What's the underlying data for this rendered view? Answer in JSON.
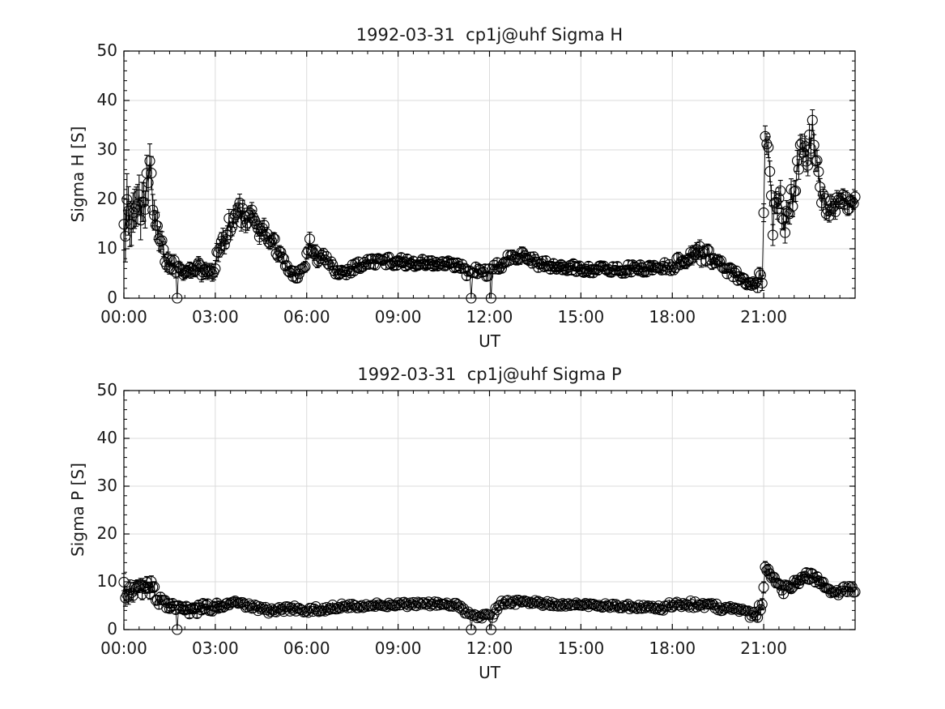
{
  "style": {
    "background_color": "#ffffff",
    "axis_color": "#000000",
    "grid_color": "#dbdbdb",
    "data_color": "#000000",
    "text_color": "#1a1a1a"
  },
  "chart_data": [
    {
      "type": "line",
      "subtype": "errorbar-open-circle-markers",
      "title": "1992-03-31  cp1j@uhf Sigma H",
      "xlabel": "UT",
      "ylabel": "Sigma H [S]",
      "xlim": [
        0,
        24
      ],
      "ylim": [
        0,
        50
      ],
      "xticks": [
        0,
        3,
        6,
        9,
        12,
        15,
        18,
        21
      ],
      "xtick_labels": [
        "00:00",
        "03:00",
        "06:00",
        "09:00",
        "12:00",
        "15:00",
        "18:00",
        "21:00"
      ],
      "yticks": [
        0,
        10,
        20,
        30,
        40,
        50
      ],
      "ytick_labels": [
        "0",
        "10",
        "20",
        "30",
        "40",
        "50"
      ],
      "x_minor_step_hours": 0.5,
      "y_minor_step": 2,
      "grid": true,
      "legend": "none",
      "marker": "open-circle",
      "sample_step_hours": 0.05,
      "seed": 1337,
      "keypoints_time_value_spread": [
        [
          0.0,
          20,
          8
        ],
        [
          0.1,
          15,
          8
        ],
        [
          0.3,
          17,
          6
        ],
        [
          0.6,
          20,
          6
        ],
        [
          0.9,
          24,
          5
        ],
        [
          1.1,
          15,
          4
        ],
        [
          1.3,
          9,
          2
        ],
        [
          1.5,
          7,
          1.5
        ],
        [
          1.8,
          6.5,
          1.5
        ],
        [
          2.1,
          6,
          1.5
        ],
        [
          2.4,
          5.5,
          1.5
        ],
        [
          2.7,
          7,
          2
        ],
        [
          2.9,
          6,
          2
        ],
        [
          3.1,
          9,
          2.5
        ],
        [
          3.3,
          13,
          2.5
        ],
        [
          3.6,
          16,
          2.5
        ],
        [
          3.8,
          17.5,
          2.5
        ],
        [
          4.0,
          15.5,
          2
        ],
        [
          4.2,
          16,
          2
        ],
        [
          4.5,
          14,
          2
        ],
        [
          4.8,
          12,
          1.5
        ],
        [
          5.1,
          9.5,
          1.5
        ],
        [
          5.4,
          5.5,
          1
        ],
        [
          5.7,
          4.8,
          1
        ],
        [
          5.9,
          6,
          1.2
        ],
        [
          6.1,
          11,
          1.8
        ],
        [
          6.3,
          8.5,
          1.5
        ],
        [
          6.6,
          8,
          1.2
        ],
        [
          6.9,
          5.8,
          1
        ],
        [
          7.2,
          5.2,
          1
        ],
        [
          7.6,
          6.5,
          1
        ],
        [
          8.0,
          7.2,
          1
        ],
        [
          8.5,
          7.6,
          1
        ],
        [
          9.0,
          7.4,
          0.9
        ],
        [
          9.5,
          7.2,
          0.9
        ],
        [
          10.0,
          7.0,
          0.9
        ],
        [
          10.5,
          6.8,
          0.9
        ],
        [
          11.0,
          6.5,
          0.9
        ],
        [
          11.3,
          5.2,
          1
        ],
        [
          11.6,
          5.5,
          1
        ],
        [
          12.0,
          5.2,
          1
        ],
        [
          12.3,
          6.5,
          1
        ],
        [
          12.7,
          8,
          1.2
        ],
        [
          13.0,
          9.3,
          1.4
        ],
        [
          13.3,
          8.2,
          1.2
        ],
        [
          13.7,
          6.8,
          1
        ],
        [
          14.2,
          6.3,
          0.9
        ],
        [
          15.0,
          6.0,
          0.9
        ],
        [
          16.0,
          5.8,
          0.9
        ],
        [
          17.0,
          6.0,
          0.9
        ],
        [
          17.6,
          6.3,
          1
        ],
        [
          18.1,
          6.8,
          1.2
        ],
        [
          18.5,
          8.2,
          1.5
        ],
        [
          18.8,
          9.5,
          1.8
        ],
        [
          19.1,
          8.8,
          1.5
        ],
        [
          19.5,
          7.2,
          1.2
        ],
        [
          19.9,
          5.5,
          1
        ],
        [
          20.2,
          4.2,
          1
        ],
        [
          20.5,
          2.8,
          0.8
        ],
        [
          20.75,
          2.5,
          0.8
        ],
        [
          20.95,
          5,
          2
        ],
        [
          21.05,
          30,
          3
        ],
        [
          21.15,
          28,
          3
        ],
        [
          21.3,
          15,
          3
        ],
        [
          21.5,
          22,
          3
        ],
        [
          21.7,
          16,
          3
        ],
        [
          21.9,
          20,
          3
        ],
        [
          22.1,
          26,
          3
        ],
        [
          22.25,
          33,
          2.5
        ],
        [
          22.4,
          27,
          3
        ],
        [
          22.6,
          35,
          3
        ],
        [
          22.75,
          25,
          3
        ],
        [
          22.9,
          20,
          2
        ],
        [
          23.1,
          17.5,
          1.5
        ],
        [
          23.35,
          19,
          2
        ],
        [
          23.55,
          21.5,
          1.5
        ],
        [
          23.75,
          18.5,
          1.5
        ],
        [
          24.0,
          19,
          1.5
        ]
      ],
      "outliers_zero_times": [
        1.75,
        11.4,
        12.05
      ]
    },
    {
      "type": "line",
      "subtype": "errorbar-open-circle-markers",
      "title": "1992-03-31  cp1j@uhf Sigma P",
      "xlabel": "UT",
      "ylabel": "Sigma P [S]",
      "xlim": [
        0,
        24
      ],
      "ylim": [
        0,
        50
      ],
      "xticks": [
        0,
        3,
        6,
        9,
        12,
        15,
        18,
        21
      ],
      "xtick_labels": [
        "00:00",
        "03:00",
        "06:00",
        "09:00",
        "12:00",
        "15:00",
        "18:00",
        "21:00"
      ],
      "yticks": [
        0,
        10,
        20,
        30,
        40,
        50
      ],
      "ytick_labels": [
        "0",
        "10",
        "20",
        "30",
        "40",
        "50"
      ],
      "x_minor_step_hours": 0.5,
      "y_minor_step": 2,
      "grid": true,
      "legend": "none",
      "marker": "open-circle",
      "sample_step_hours": 0.05,
      "seed": 777,
      "keypoints_time_value_spread": [
        [
          0.0,
          9,
          2.5
        ],
        [
          0.3,
          8,
          1.8
        ],
        [
          0.6,
          8.5,
          1.5
        ],
        [
          0.9,
          8.8,
          1.5
        ],
        [
          1.1,
          6.5,
          1.2
        ],
        [
          1.4,
          5.5,
          1
        ],
        [
          1.7,
          5,
          1
        ],
        [
          2.0,
          4.2,
          0.9
        ],
        [
          2.3,
          3.6,
          0.9
        ],
        [
          2.6,
          4.8,
          1
        ],
        [
          2.9,
          4.5,
          1.2
        ],
        [
          3.2,
          5.2,
          0.8
        ],
        [
          3.6,
          5.4,
          0.7
        ],
        [
          4.0,
          5.2,
          0.7
        ],
        [
          4.4,
          4.6,
          0.7
        ],
        [
          4.8,
          3.9,
          0.7
        ],
        [
          5.2,
          4.3,
          0.7
        ],
        [
          5.6,
          4.4,
          0.6
        ],
        [
          6.0,
          4.1,
          0.6
        ],
        [
          6.5,
          4.3,
          0.6
        ],
        [
          7.0,
          4.8,
          0.6
        ],
        [
          7.5,
          5.0,
          0.5
        ],
        [
          8.0,
          5.1,
          0.5
        ],
        [
          9.0,
          5.2,
          0.5
        ],
        [
          10.0,
          5.4,
          0.5
        ],
        [
          11.0,
          5.1,
          0.5
        ],
        [
          11.3,
          3.2,
          0.6
        ],
        [
          11.7,
          2.9,
          0.6
        ],
        [
          12.1,
          3.1,
          0.6
        ],
        [
          12.35,
          5.6,
          0.6
        ],
        [
          13.0,
          5.8,
          0.5
        ],
        [
          14.0,
          5.4,
          0.5
        ],
        [
          15.0,
          5.2,
          0.5
        ],
        [
          16.0,
          5.0,
          0.5
        ],
        [
          17.0,
          4.7,
          0.5
        ],
        [
          17.6,
          4.4,
          0.6
        ],
        [
          18.0,
          5.2,
          0.7
        ],
        [
          18.5,
          5.4,
          0.7
        ],
        [
          19.0,
          5.1,
          0.7
        ],
        [
          19.5,
          4.7,
          0.7
        ],
        [
          20.0,
          4.1,
          0.7
        ],
        [
          20.4,
          3.4,
          0.8
        ],
        [
          20.7,
          3.0,
          0.8
        ],
        [
          20.95,
          4.5,
          1.5
        ],
        [
          21.05,
          13,
          1.5
        ],
        [
          21.2,
          10.5,
          1.2
        ],
        [
          21.45,
          9.5,
          1.2
        ],
        [
          21.7,
          8.3,
          1.2
        ],
        [
          21.95,
          9.2,
          1
        ],
        [
          22.2,
          10.5,
          1
        ],
        [
          22.5,
          11.3,
          1
        ],
        [
          22.8,
          10.3,
          1
        ],
        [
          23.1,
          7.8,
          0.8
        ],
        [
          23.4,
          7.6,
          0.8
        ],
        [
          23.7,
          8.6,
          0.8
        ],
        [
          24.0,
          8.3,
          0.8
        ]
      ],
      "outliers_zero_times": [
        1.75,
        11.4,
        12.05
      ]
    }
  ]
}
